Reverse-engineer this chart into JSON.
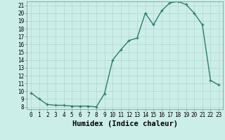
{
  "x": [
    0,
    1,
    2,
    3,
    4,
    5,
    6,
    7,
    8,
    9,
    10,
    11,
    12,
    13,
    14,
    15,
    16,
    17,
    18,
    19,
    20,
    21,
    22,
    23
  ],
  "y": [
    9.8,
    9.0,
    8.3,
    8.2,
    8.2,
    8.1,
    8.1,
    8.1,
    8.0,
    9.7,
    14.0,
    15.3,
    16.5,
    16.8,
    20.0,
    18.5,
    20.3,
    21.3,
    21.5,
    21.1,
    20.0,
    18.5,
    11.4,
    10.8
  ],
  "line_color": "#2d7d6e",
  "marker": "+",
  "marker_size": 3.5,
  "marker_lw": 0.9,
  "bg_color": "#cceee8",
  "grid_color": "#b0d8cc",
  "xlabel": "Humidex (Indice chaleur)",
  "ylim_min": 8,
  "ylim_max": 22,
  "xlim_min": -0.5,
  "xlim_max": 23.5,
  "yticks": [
    8,
    9,
    10,
    11,
    12,
    13,
    14,
    15,
    16,
    17,
    18,
    19,
    20,
    21
  ],
  "xticks": [
    0,
    1,
    2,
    3,
    4,
    5,
    6,
    7,
    8,
    9,
    10,
    11,
    12,
    13,
    14,
    15,
    16,
    17,
    18,
    19,
    20,
    21,
    22,
    23
  ],
  "tick_label_fontsize": 5.5,
  "xlabel_fontsize": 7.5,
  "line_width": 1.0
}
